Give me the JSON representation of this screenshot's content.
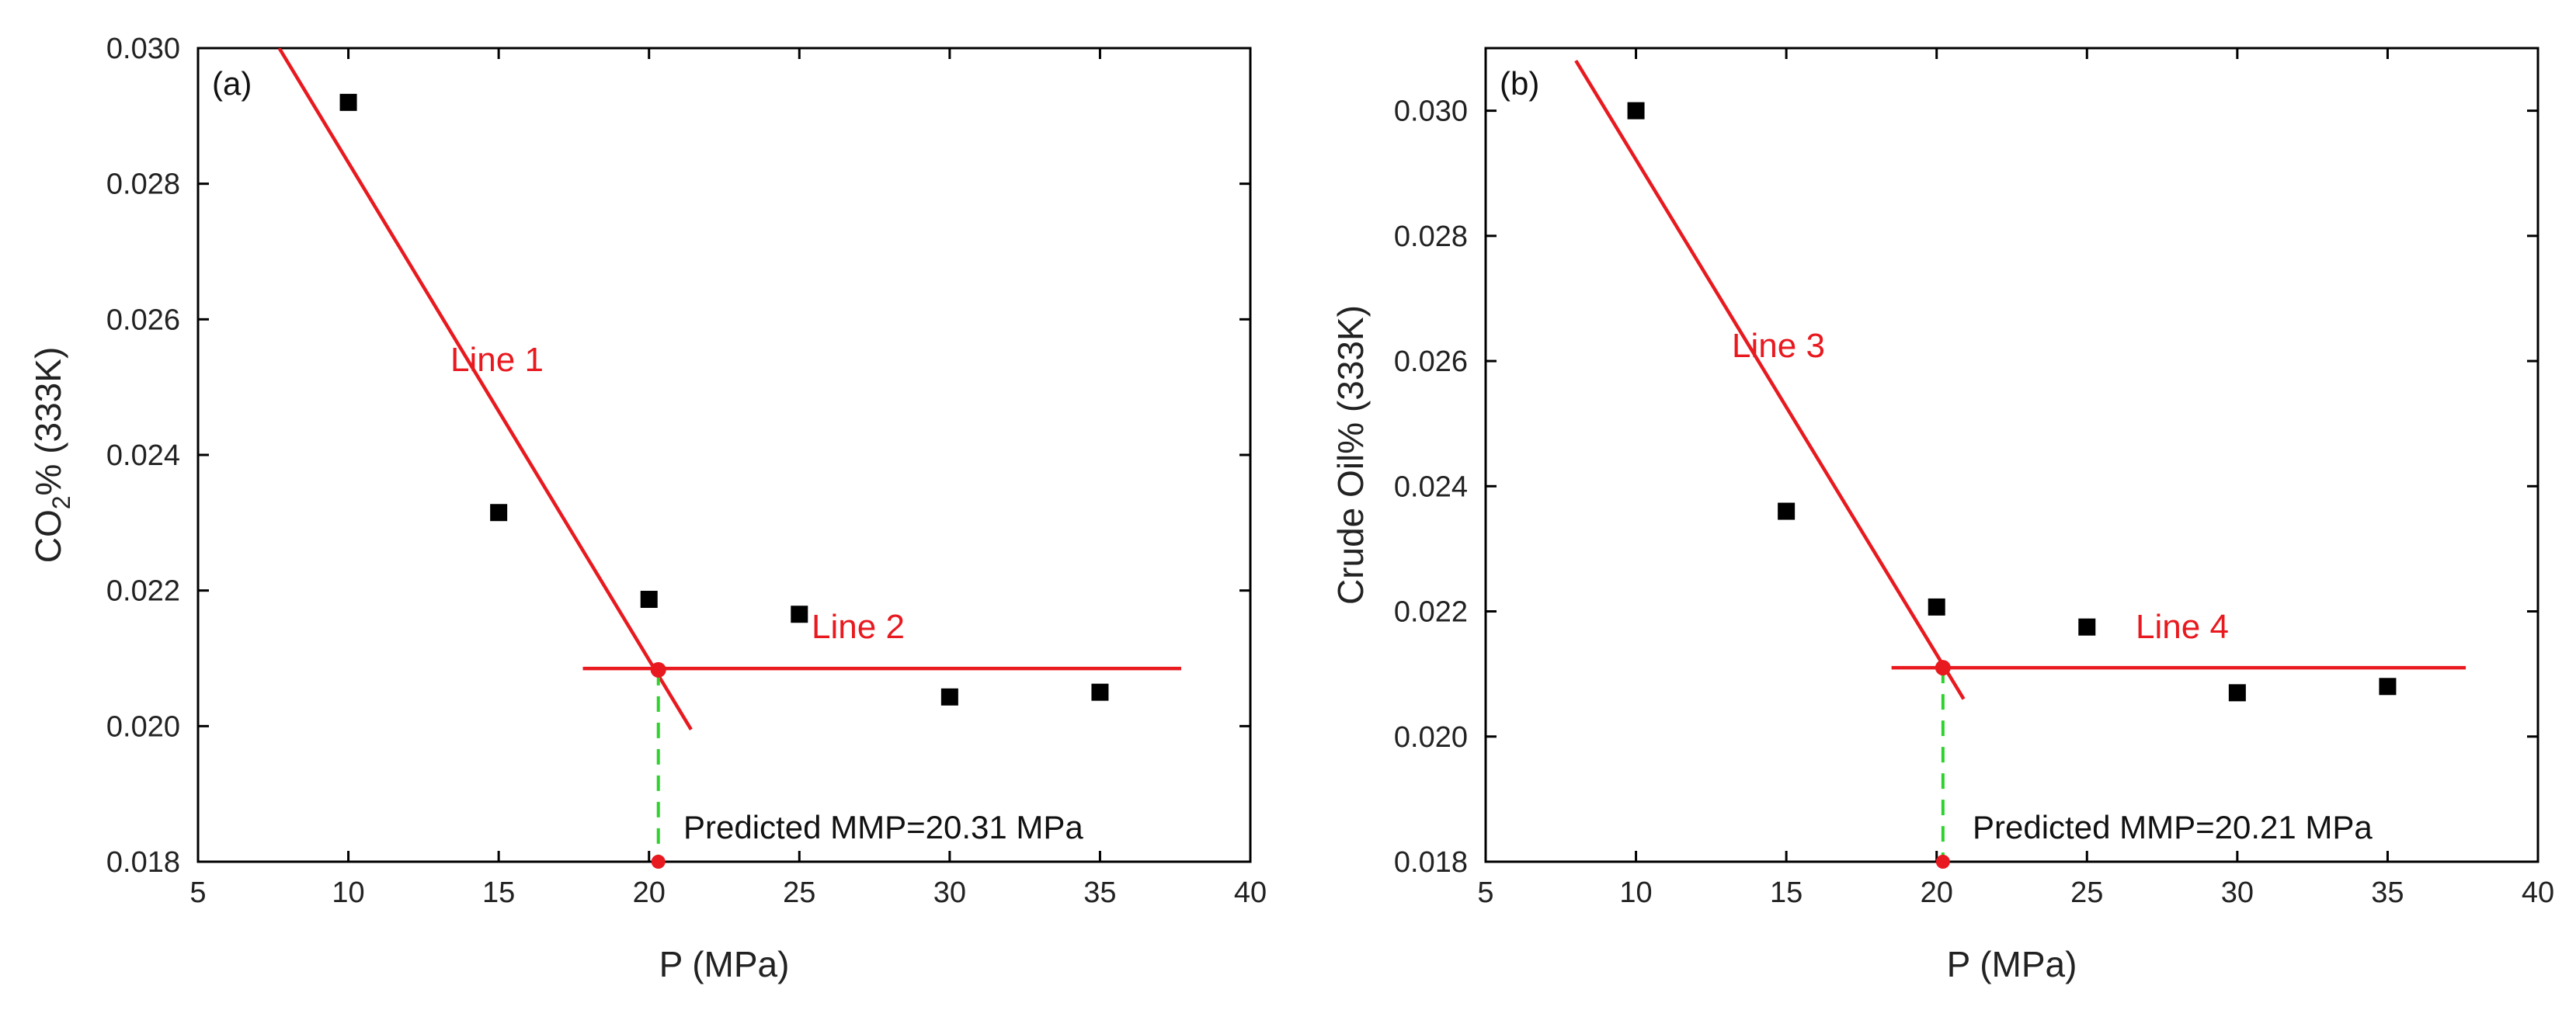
{
  "chart_data": [
    {
      "panel_label": "(a)",
      "type": "scatter",
      "xlabel": "P (MPa)",
      "ylabel_main": "CO",
      "ylabel_sub": "2",
      "ylabel_rest": "% (333K)",
      "xlim": [
        5,
        40
      ],
      "ylim": [
        0.018,
        0.03
      ],
      "x_ticks": [
        "5",
        "10",
        "15",
        "20",
        "25",
        "30",
        "35",
        "40"
      ],
      "y_ticks": [
        "0.018",
        "0.020",
        "0.022",
        "0.024",
        "0.026",
        "0.028",
        "0.030"
      ],
      "points": {
        "x": [
          10,
          15,
          20,
          25,
          30,
          35
        ],
        "y": [
          0.0292,
          0.02315,
          0.02187,
          0.02165,
          0.02043,
          0.0205
        ]
      },
      "lines": [
        {
          "name": "Line 1",
          "x": [
            7.7,
            21.4
          ],
          "y": [
            0.03,
            0.01995
          ]
        },
        {
          "name": "Line 2",
          "x": [
            17.8,
            37.7
          ],
          "y": [
            0.02085,
            0.02085
          ]
        }
      ],
      "intersection": {
        "x": 20.31,
        "y": 0.02083
      },
      "annotation": "Predicted MMP=20.31 MPa",
      "grid": false
    },
    {
      "panel_label": "(b)",
      "type": "scatter",
      "xlabel": "P (MPa)",
      "ylabel_main": "Crude Oil% (333K)",
      "ylabel_sub": "",
      "ylabel_rest": "",
      "xlim": [
        5,
        40
      ],
      "ylim": [
        0.018,
        0.031
      ],
      "x_ticks": [
        "5",
        "10",
        "15",
        "20",
        "25",
        "30",
        "35",
        "40"
      ],
      "y_ticks": [
        "0.018",
        "0.020",
        "0.022",
        "0.024",
        "0.026",
        "0.028",
        "0.030"
      ],
      "points": {
        "x": [
          10,
          15,
          20,
          25,
          30,
          35
        ],
        "y": [
          0.03,
          0.0236,
          0.02207,
          0.02175,
          0.0207,
          0.0208
        ]
      },
      "lines": [
        {
          "name": "Line 3",
          "x": [
            8.0,
            20.9
          ],
          "y": [
            0.0308,
            0.0206
          ]
        },
        {
          "name": "Line 4",
          "x": [
            18.5,
            37.6
          ],
          "y": [
            0.0211,
            0.0211
          ]
        }
      ],
      "intersection": {
        "x": 20.21,
        "y": 0.0211
      },
      "annotation": "Predicted MMP=20.21 MPa",
      "grid": false
    }
  ],
  "colors": {
    "fit_line": "#e8191f",
    "drop_line": "#2fd12f",
    "points": "#000000"
  }
}
